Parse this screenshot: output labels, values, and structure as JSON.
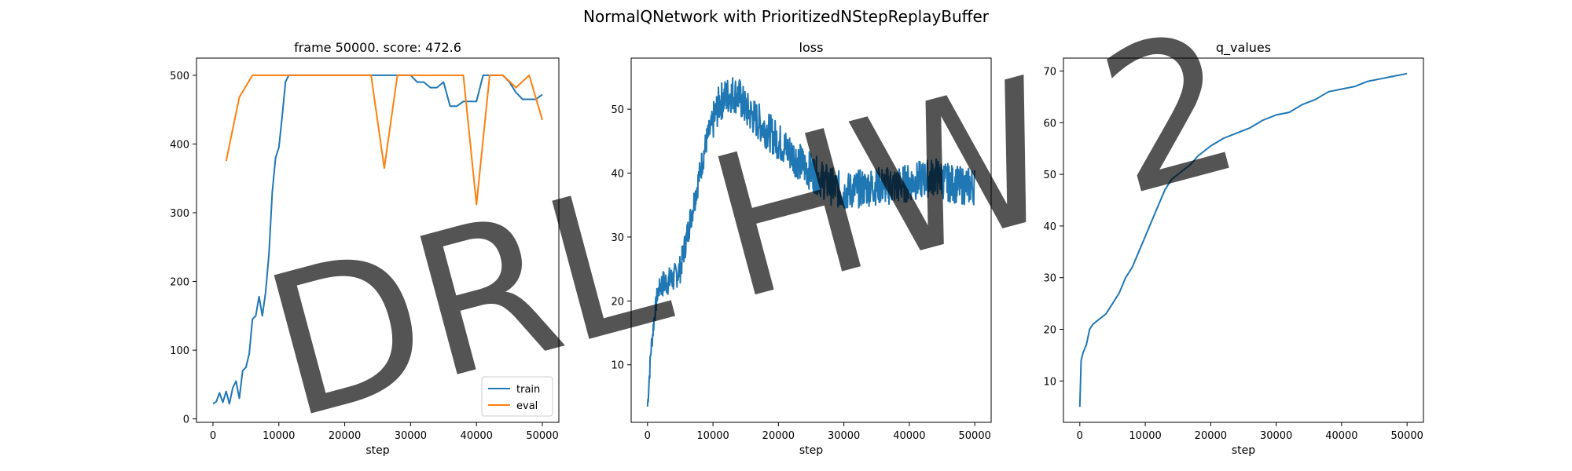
{
  "figure": {
    "suptitle": "NormalQNetwork with PrioritizedNStepReplayBuffer",
    "watermark": "DRL HW 2"
  },
  "colors": {
    "train": "#1f77b4",
    "eval": "#ff7f0e",
    "watermark": "#000000"
  },
  "chart_data": [
    {
      "type": "line",
      "title": "frame 50000. score: 472.6",
      "xlabel": "step",
      "ylabel": "",
      "xlim": [
        -2500,
        52500
      ],
      "ylim": [
        -5,
        525
      ],
      "xticks": [
        0,
        10000,
        20000,
        30000,
        40000,
        50000
      ],
      "yticks": [
        0,
        100,
        200,
        300,
        400,
        500
      ],
      "grid": false,
      "legend": "bottom-right",
      "series": [
        {
          "name": "train",
          "color": "#1f77b4",
          "x": [
            0,
            500,
            1000,
            1500,
            2000,
            2500,
            3000,
            3500,
            4000,
            4500,
            5000,
            5500,
            6000,
            6500,
            7000,
            7500,
            8000,
            8500,
            9000,
            9500,
            10000,
            10500,
            11000,
            11500,
            12000,
            12500,
            13000,
            13500,
            14000,
            15000,
            20000,
            24000,
            30000,
            31000,
            32000,
            33000,
            34000,
            35000,
            36000,
            36500,
            37000,
            38000,
            38500,
            39000,
            40000,
            41000,
            42000,
            43000,
            44000,
            45000,
            46000,
            47000,
            48000,
            49000,
            50000
          ],
          "y": [
            22,
            25,
            38,
            24,
            40,
            22,
            45,
            55,
            30,
            70,
            75,
            95,
            145,
            150,
            178,
            150,
            185,
            240,
            330,
            380,
            395,
            440,
            490,
            500,
            500,
            500,
            500,
            500,
            500,
            500,
            500,
            500,
            500,
            490,
            490,
            482,
            482,
            490,
            455,
            455,
            455,
            462,
            462,
            462,
            462,
            500,
            500,
            500,
            500,
            490,
            475,
            465,
            465,
            465,
            472
          ]
        },
        {
          "name": "eval",
          "color": "#ff7f0e",
          "x": [
            2000,
            4000,
            6000,
            8000,
            10000,
            20000,
            24000,
            26000,
            28000,
            30000,
            38000,
            40000,
            42000,
            44000,
            46000,
            48000,
            50000
          ],
          "y": [
            375,
            468,
            500,
            500,
            500,
            500,
            500,
            365,
            500,
            500,
            500,
            312,
            500,
            500,
            482,
            500,
            435
          ]
        }
      ]
    },
    {
      "type": "line",
      "title": "loss",
      "xlabel": "step",
      "ylabel": "",
      "xlim": [
        -2500,
        52500
      ],
      "ylim": [
        1,
        58
      ],
      "xticks": [
        0,
        10000,
        20000,
        30000,
        40000,
        50000
      ],
      "yticks": [
        10,
        20,
        30,
        40,
        50
      ],
      "grid": false,
      "series": [
        {
          "color": "#1f77b4",
          "x": [
            0,
            500,
            1000,
            1500,
            2000,
            3000,
            4000,
            5000,
            6000,
            7000,
            8000,
            9000,
            10000,
            11000,
            12000,
            13000,
            14000,
            15000,
            16000,
            18000,
            20000,
            22000,
            24000,
            26000,
            28000,
            30000,
            32000,
            35000,
            38000,
            40000,
            42000,
            44000,
            46000,
            48000,
            50000
          ],
          "y": [
            3.5,
            12,
            17,
            21,
            22.5,
            23,
            23.5,
            25,
            30,
            35,
            40,
            45,
            48,
            51,
            52,
            52.5,
            52,
            50,
            49,
            47,
            45,
            43,
            41,
            39.5,
            38,
            37,
            37.5,
            38,
            38,
            38.5,
            39,
            39.5,
            38.5,
            38,
            38
          ]
        }
      ]
    },
    {
      "type": "line",
      "title": "q_values",
      "xlabel": "step",
      "ylabel": "",
      "xlim": [
        -2500,
        52500
      ],
      "ylim": [
        2,
        72.5
      ],
      "xticks": [
        0,
        10000,
        20000,
        30000,
        40000,
        50000
      ],
      "yticks": [
        10,
        20,
        30,
        40,
        50,
        60,
        70
      ],
      "grid": false,
      "series": [
        {
          "color": "#1f77b4",
          "x": [
            0,
            200,
            500,
            1000,
            1500,
            2000,
            3000,
            4000,
            5000,
            6000,
            7000,
            8000,
            9000,
            10000,
            11000,
            12000,
            13000,
            14000,
            15000,
            16000,
            17000,
            18000,
            19000,
            20000,
            22000,
            24000,
            26000,
            28000,
            30000,
            32000,
            34000,
            36000,
            38000,
            40000,
            42000,
            44000,
            46000,
            48000,
            50000
          ],
          "y": [
            5,
            14,
            15.5,
            17,
            20,
            21,
            22,
            23,
            25,
            27,
            30,
            32,
            35,
            38,
            41,
            44,
            47,
            49,
            50,
            51,
            52,
            53.5,
            54.5,
            55.5,
            57,
            58,
            59,
            60.5,
            61.5,
            62,
            63.5,
            64.5,
            66,
            66.5,
            67,
            68,
            68.5,
            69,
            69.5
          ]
        }
      ]
    }
  ]
}
